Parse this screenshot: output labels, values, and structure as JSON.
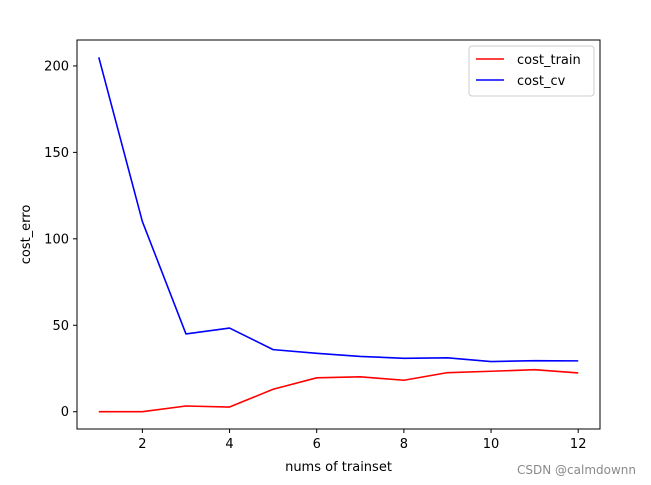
{
  "chart_data": {
    "type": "line",
    "title": "",
    "xlabel": "nums of trainset",
    "ylabel": "cost_erro",
    "xlim": [
      0.5,
      12.5
    ],
    "ylim": [
      -10,
      215
    ],
    "xticks": [
      2,
      4,
      6,
      8,
      10,
      12
    ],
    "yticks": [
      0,
      50,
      100,
      150,
      200
    ],
    "grid": false,
    "legend_position": "top-right",
    "x": [
      1,
      2,
      3,
      4,
      5,
      6,
      7,
      8,
      9,
      10,
      11,
      12
    ],
    "series": [
      {
        "name": "cost_train",
        "color": "#ff0000",
        "values": [
          0,
          0,
          3.3,
          2.7,
          13,
          19.6,
          20.2,
          18.2,
          22.6,
          23.4,
          24.3,
          22.4
        ]
      },
      {
        "name": "cost_cv",
        "color": "#0000ff",
        "values": [
          205,
          110,
          45,
          48.4,
          35.9,
          33.8,
          32,
          30.9,
          31.2,
          29,
          29.5,
          29.4
        ]
      }
    ]
  },
  "watermark": "CSDN @calmdownn"
}
